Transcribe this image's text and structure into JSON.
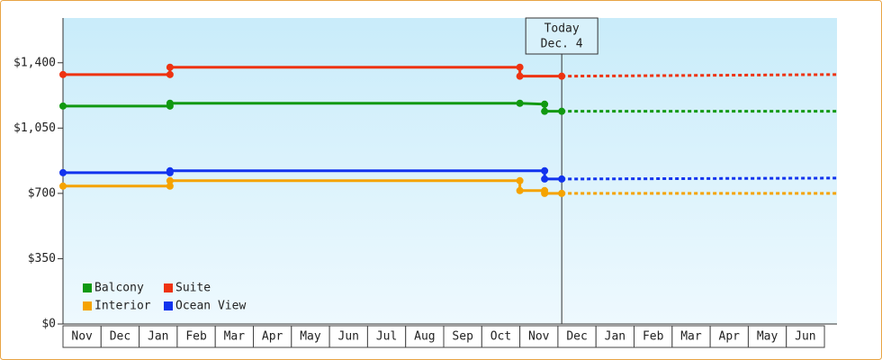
{
  "chart_data": {
    "type": "step-line",
    "categories": [
      "Nov",
      "Dec",
      "Jan",
      "Feb",
      "Mar",
      "Apr",
      "May",
      "Jun",
      "Jul",
      "Aug",
      "Sep",
      "Oct",
      "Nov",
      "Dec",
      "Jan",
      "Feb",
      "Mar",
      "Apr",
      "May",
      "Jun"
    ],
    "xlim": [
      0,
      20.33
    ],
    "ylim": [
      0,
      1640
    ],
    "yticks": [
      {
        "value": 0,
        "label": "$0"
      },
      {
        "value": 350,
        "label": "$350"
      },
      {
        "value": 700,
        "label": "$700"
      },
      {
        "value": 1050,
        "label": "$1,050"
      },
      {
        "value": 1400,
        "label": "$1,400"
      }
    ],
    "annotation": {
      "x": 13.1,
      "lines": [
        "Today",
        "Dec. 4"
      ]
    },
    "legend": "bottom-left",
    "series": [
      {
        "name": "Balcony",
        "color": "#119911",
        "x": [
          0,
          2.81,
          2.81,
          12,
          12.65,
          12.65,
          13.1
        ],
        "values": [
          1168,
          1168,
          1183,
          1183,
          1178,
          1140,
          1140
        ],
        "forecast_x": [
          13.1,
          20.33
        ],
        "forecast_values": [
          1140,
          1140
        ]
      },
      {
        "name": "Suite",
        "color": "#ee3311",
        "x": [
          0,
          2.81,
          2.81,
          12,
          12,
          13.1
        ],
        "values": [
          1337,
          1337,
          1376,
          1376,
          1328,
          1328
        ],
        "forecast_x": [
          13.1,
          20.33
        ],
        "forecast_values": [
          1328,
          1337
        ]
      },
      {
        "name": "Interior",
        "color": "#f5a300",
        "x": [
          0,
          2.81,
          2.81,
          12,
          12,
          12.65,
          12.65,
          13.1
        ],
        "values": [
          739,
          739,
          768,
          768,
          715,
          715,
          700,
          700
        ],
        "forecast_x": [
          13.1,
          20.33
        ],
        "forecast_values": [
          700,
          700
        ]
      },
      {
        "name": "Ocean View",
        "color": "#1133ee",
        "x": [
          0,
          2.81,
          2.81,
          12.65,
          12.65,
          13.1
        ],
        "values": [
          811,
          811,
          821,
          821,
          777,
          777
        ],
        "forecast_x": [
          13.1,
          20.33
        ],
        "forecast_values": [
          777,
          782
        ]
      }
    ]
  }
}
